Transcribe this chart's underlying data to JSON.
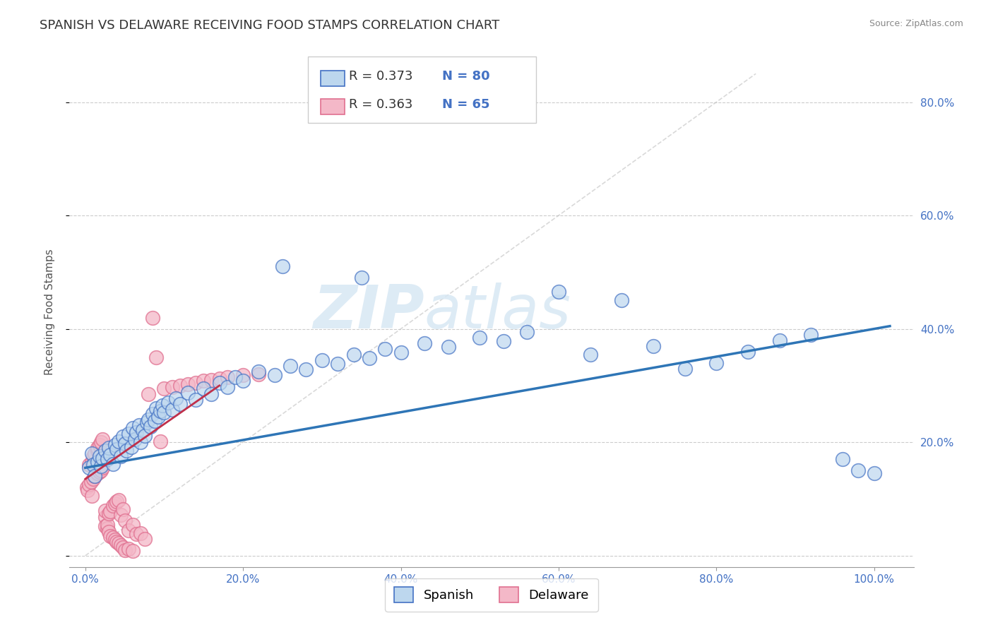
{
  "title": "SPANISH VS DELAWARE RECEIVING FOOD STAMPS CORRELATION CHART",
  "source_text": "Source: ZipAtlas.com",
  "ylabel": "Receiving Food Stamps",
  "x_ticks": [
    0.0,
    0.2,
    0.4,
    0.6,
    0.8,
    1.0
  ],
  "x_tick_labels": [
    "0.0%",
    "20.0%",
    "40.0%",
    "60.0%",
    "80.0%",
    "100.0%"
  ],
  "y_ticks": [
    0.0,
    0.2,
    0.4,
    0.6,
    0.8
  ],
  "y_tick_labels": [
    "",
    "20.0%",
    "40.0%",
    "60.0%",
    "80.0%"
  ],
  "xlim": [
    -0.02,
    1.05
  ],
  "ylim": [
    -0.02,
    0.88
  ],
  "spanish_color": "#bdd7ee",
  "delaware_color": "#f4b8c8",
  "spanish_edge_color": "#4472c4",
  "delaware_edge_color": "#e07090",
  "trend_spanish_color": "#2e75b6",
  "trend_delaware_color": "#c0304a",
  "diag_line_color": "#c0c0c0",
  "R_spanish": 0.373,
  "N_spanish": 80,
  "R_delaware": 0.363,
  "N_delaware": 65,
  "legend_spanish_label": "Spanish",
  "legend_delaware_label": "Delaware",
  "watermark_zip": "ZIP",
  "watermark_atlas": "atlas",
  "title_fontsize": 13,
  "axis_label_fontsize": 11,
  "tick_fontsize": 11,
  "legend_fontsize": 13,
  "spanish_x": [
    0.005,
    0.008,
    0.01,
    0.012,
    0.015,
    0.018,
    0.02,
    0.022,
    0.025,
    0.028,
    0.03,
    0.032,
    0.035,
    0.038,
    0.04,
    0.042,
    0.045,
    0.048,
    0.05,
    0.052,
    0.055,
    0.058,
    0.06,
    0.063,
    0.065,
    0.068,
    0.07,
    0.073,
    0.075,
    0.078,
    0.08,
    0.083,
    0.085,
    0.088,
    0.09,
    0.092,
    0.095,
    0.098,
    0.1,
    0.105,
    0.11,
    0.115,
    0.12,
    0.13,
    0.14,
    0.15,
    0.16,
    0.17,
    0.18,
    0.19,
    0.2,
    0.22,
    0.24,
    0.26,
    0.28,
    0.3,
    0.32,
    0.34,
    0.36,
    0.38,
    0.4,
    0.43,
    0.46,
    0.5,
    0.53,
    0.56,
    0.6,
    0.64,
    0.68,
    0.72,
    0.76,
    0.8,
    0.84,
    0.88,
    0.92,
    0.96,
    0.98,
    1.0,
    0.35,
    0.25
  ],
  "spanish_y": [
    0.155,
    0.16,
    0.165,
    0.155,
    0.16,
    0.158,
    0.162,
    0.168,
    0.172,
    0.175,
    0.178,
    0.18,
    0.182,
    0.185,
    0.19,
    0.188,
    0.192,
    0.195,
    0.198,
    0.2,
    0.202,
    0.205,
    0.208,
    0.21,
    0.212,
    0.215,
    0.218,
    0.22,
    0.222,
    0.225,
    0.228,
    0.23,
    0.232,
    0.235,
    0.238,
    0.24,
    0.242,
    0.245,
    0.248,
    0.25,
    0.252,
    0.255,
    0.258,
    0.26,
    0.262,
    0.265,
    0.268,
    0.27,
    0.272,
    0.275,
    0.278,
    0.28,
    0.282,
    0.285,
    0.288,
    0.29,
    0.295,
    0.3,
    0.305,
    0.31,
    0.315,
    0.32,
    0.325,
    0.33,
    0.335,
    0.34,
    0.345,
    0.35,
    0.355,
    0.36,
    0.365,
    0.37,
    0.375,
    0.38,
    0.385,
    0.39,
    0.395,
    0.4,
    0.48,
    0.52
  ],
  "spanish_y_scatter": [
    0.155,
    0.18,
    0.16,
    0.14,
    0.165,
    0.175,
    0.158,
    0.172,
    0.185,
    0.17,
    0.19,
    0.178,
    0.162,
    0.195,
    0.188,
    0.202,
    0.175,
    0.21,
    0.198,
    0.185,
    0.215,
    0.192,
    0.225,
    0.205,
    0.218,
    0.23,
    0.2,
    0.222,
    0.212,
    0.235,
    0.24,
    0.228,
    0.25,
    0.238,
    0.26,
    0.245,
    0.255,
    0.265,
    0.252,
    0.27,
    0.258,
    0.278,
    0.268,
    0.288,
    0.275,
    0.295,
    0.285,
    0.305,
    0.298,
    0.315,
    0.308,
    0.325,
    0.318,
    0.335,
    0.328,
    0.345,
    0.338,
    0.355,
    0.348,
    0.365,
    0.358,
    0.375,
    0.368,
    0.385,
    0.378,
    0.395,
    0.465,
    0.355,
    0.45,
    0.37,
    0.33,
    0.34,
    0.36,
    0.38,
    0.39,
    0.17,
    0.15,
    0.145,
    0.49,
    0.51
  ],
  "delaware_x": [
    0.002,
    0.003,
    0.005,
    0.005,
    0.007,
    0.008,
    0.008,
    0.01,
    0.01,
    0.012,
    0.012,
    0.015,
    0.015,
    0.015,
    0.018,
    0.018,
    0.02,
    0.02,
    0.022,
    0.022,
    0.025,
    0.025,
    0.025,
    0.028,
    0.028,
    0.03,
    0.03,
    0.032,
    0.032,
    0.035,
    0.035,
    0.038,
    0.038,
    0.04,
    0.04,
    0.042,
    0.042,
    0.045,
    0.045,
    0.048,
    0.048,
    0.05,
    0.05,
    0.055,
    0.055,
    0.06,
    0.06,
    0.065,
    0.07,
    0.075,
    0.08,
    0.085,
    0.09,
    0.095,
    0.1,
    0.11,
    0.12,
    0.13,
    0.14,
    0.15,
    0.16,
    0.17,
    0.18,
    0.2,
    0.22
  ],
  "delaware_y": [
    0.12,
    0.115,
    0.125,
    0.16,
    0.13,
    0.105,
    0.165,
    0.135,
    0.175,
    0.14,
    0.18,
    0.145,
    0.185,
    0.19,
    0.148,
    0.195,
    0.15,
    0.2,
    0.155,
    0.205,
    0.158,
    0.21,
    0.215,
    0.16,
    0.22,
    0.162,
    0.225,
    0.165,
    0.23,
    0.168,
    0.235,
    0.17,
    0.24,
    0.172,
    0.245,
    0.175,
    0.25,
    0.178,
    0.255,
    0.182,
    0.26,
    0.185,
    0.265,
    0.188,
    0.27,
    0.192,
    0.275,
    0.195,
    0.28,
    0.198,
    0.285,
    0.2,
    0.29,
    0.202,
    0.295,
    0.298,
    0.3,
    0.302,
    0.305,
    0.308,
    0.31,
    0.312,
    0.315,
    0.318,
    0.32
  ],
  "delaware_y_scatter": [
    0.12,
    0.115,
    0.125,
    0.16,
    0.13,
    0.105,
    0.165,
    0.135,
    0.175,
    0.14,
    0.18,
    0.145,
    0.185,
    0.19,
    0.148,
    0.195,
    0.15,
    0.2,
    0.155,
    0.205,
    0.068,
    0.08,
    0.052,
    0.048,
    0.055,
    0.075,
    0.042,
    0.078,
    0.035,
    0.088,
    0.032,
    0.092,
    0.028,
    0.095,
    0.025,
    0.098,
    0.022,
    0.072,
    0.018,
    0.082,
    0.015,
    0.062,
    0.01,
    0.045,
    0.012,
    0.055,
    0.008,
    0.038,
    0.04,
    0.03,
    0.285,
    0.42,
    0.35,
    0.202,
    0.295,
    0.298,
    0.3,
    0.302,
    0.305,
    0.308,
    0.31,
    0.312,
    0.315,
    0.318,
    0.32
  ]
}
